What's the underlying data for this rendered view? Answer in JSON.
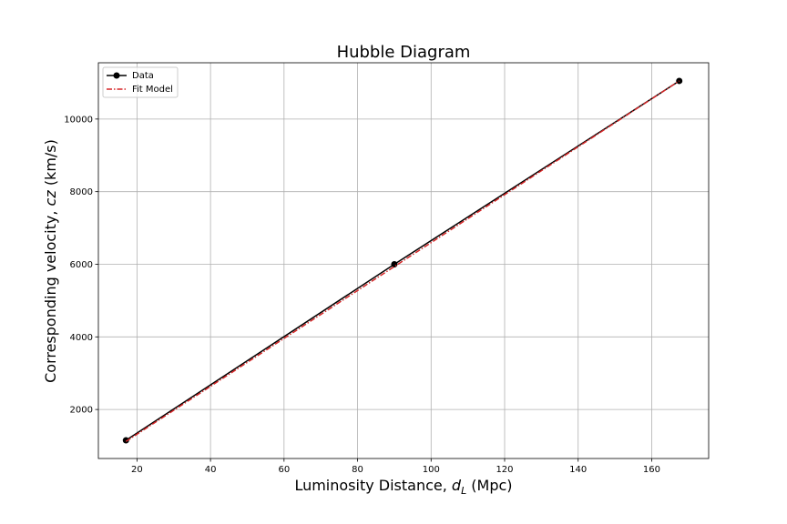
{
  "chart_data": {
    "type": "line",
    "title": "Hubble Diagram",
    "xlabel_main": "Luminosity Distance, ",
    "xlabel_var": "d",
    "xlabel_sub": "L",
    "xlabel_unit": " (Mpc)",
    "ylabel_main": "Corresponding velocity, ",
    "ylabel_var": "cz",
    "ylabel_unit": " (km/s)",
    "xlim": [
      9.5,
      175.5
    ],
    "ylim": [
      650,
      11550
    ],
    "xticks": [
      20,
      40,
      60,
      80,
      100,
      120,
      140,
      160
    ],
    "yticks": [
      2000,
      4000,
      6000,
      8000,
      10000
    ],
    "grid": true,
    "legend_position": "top-left",
    "series": [
      {
        "name": "Data",
        "color": "#000000",
        "line_style": "solid",
        "marker": "circle",
        "x": [
          17,
          90,
          167.5
        ],
        "y": [
          1150,
          6000,
          11050
        ]
      },
      {
        "name": "Fit Model",
        "color": "#d62728",
        "line_style": "dashdot",
        "marker": "none",
        "x": [
          17,
          167.5
        ],
        "y": [
          1120,
          11050
        ]
      }
    ]
  }
}
